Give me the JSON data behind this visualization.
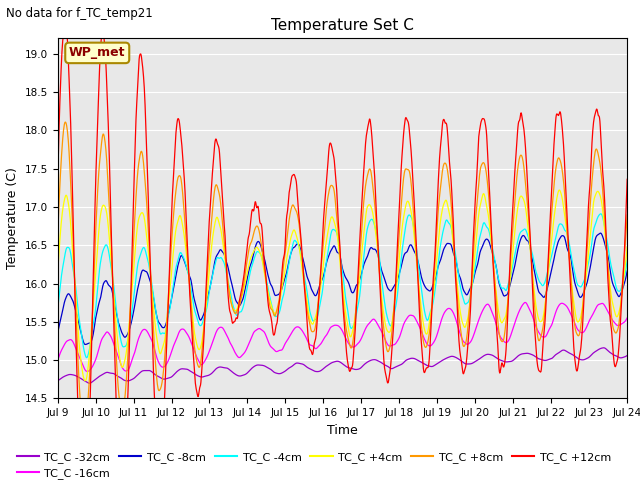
{
  "title": "Temperature Set C",
  "xlabel": "Time",
  "ylabel": "Temperature (C)",
  "annotation_text": "WP_met",
  "top_label": "No data for f_TC_temp21",
  "ylim": [
    14.5,
    19.2
  ],
  "series": [
    {
      "label": "TC_C -32cm",
      "color": "#9900cc",
      "depth": -32
    },
    {
      "label": "TC_C -16cm",
      "color": "#ff00ff",
      "depth": -16
    },
    {
      "label": "TC_C -8cm",
      "color": "#0000cc",
      "depth": -8
    },
    {
      "label": "TC_C -4cm",
      "color": "#00ffff",
      "depth": -4
    },
    {
      "label": "TC_C +4cm",
      "color": "#ffff00",
      "depth": 4
    },
    {
      "label": "TC_C +8cm",
      "color": "#ff9900",
      "depth": 8
    },
    {
      "label": "TC_C +12cm",
      "color": "#ff0000",
      "depth": 12
    }
  ],
  "xtick_labels": [
    "Jul 9",
    "Jul 10",
    "Jul 11",
    "Jul 12",
    "Jul 13",
    "Jul 14",
    "Jul 15",
    "Jul 16",
    "Jul 17",
    "Jul 18",
    "Jul 19",
    "Jul 20",
    "Jul 21",
    "Jul 22",
    "Jul 23",
    "Jul 24"
  ],
  "background_color": "#ffffff",
  "plot_bg_color": "#e8e8e8",
  "figwidth": 6.4,
  "figheight": 4.8,
  "dpi": 100
}
